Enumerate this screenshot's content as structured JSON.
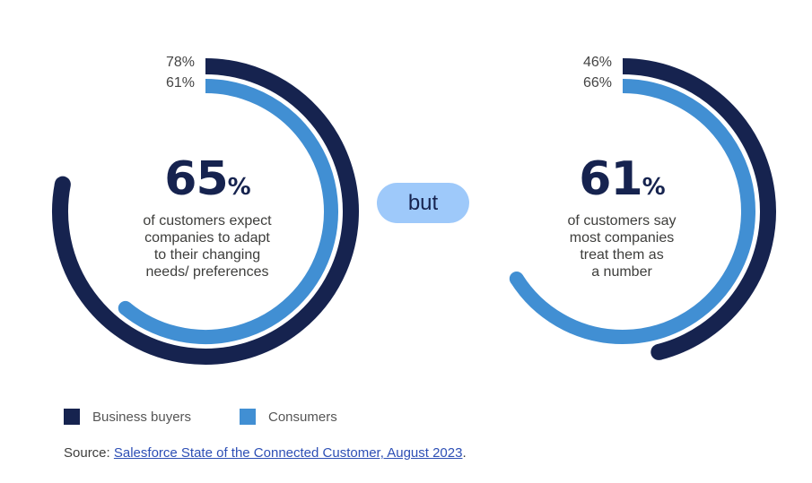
{
  "colors": {
    "business_buyers": "#16234f",
    "consumers": "#418fd3",
    "pill": "#9ec9fa"
  },
  "chart_data": [
    {
      "type": "radial-bar",
      "series": [
        {
          "name": "Business buyers",
          "value": 78,
          "label": "78%"
        },
        {
          "name": "Consumers",
          "value": 61,
          "label": "61%"
        }
      ],
      "headline": {
        "value": "65",
        "unit": "%",
        "text_lines": [
          "of customers expect",
          "companies to adapt",
          "to their changing",
          "needs/ preferences"
        ]
      }
    },
    {
      "type": "radial-bar",
      "series": [
        {
          "name": "Business buyers",
          "value": 46,
          "label": "46%"
        },
        {
          "name": "Consumers",
          "value": 66,
          "label": "66%"
        }
      ],
      "headline": {
        "value": "61",
        "unit": "%",
        "text_lines": [
          "of customers say",
          "most companies",
          "treat them as",
          "a number"
        ]
      }
    }
  ],
  "connector": "but",
  "legend": [
    {
      "label": "Business buyers"
    },
    {
      "label": "Consumers"
    }
  ],
  "source": {
    "prefix": "Source: ",
    "link": "Salesforce State of the Connected Customer, August 2023",
    "suffix": "."
  }
}
